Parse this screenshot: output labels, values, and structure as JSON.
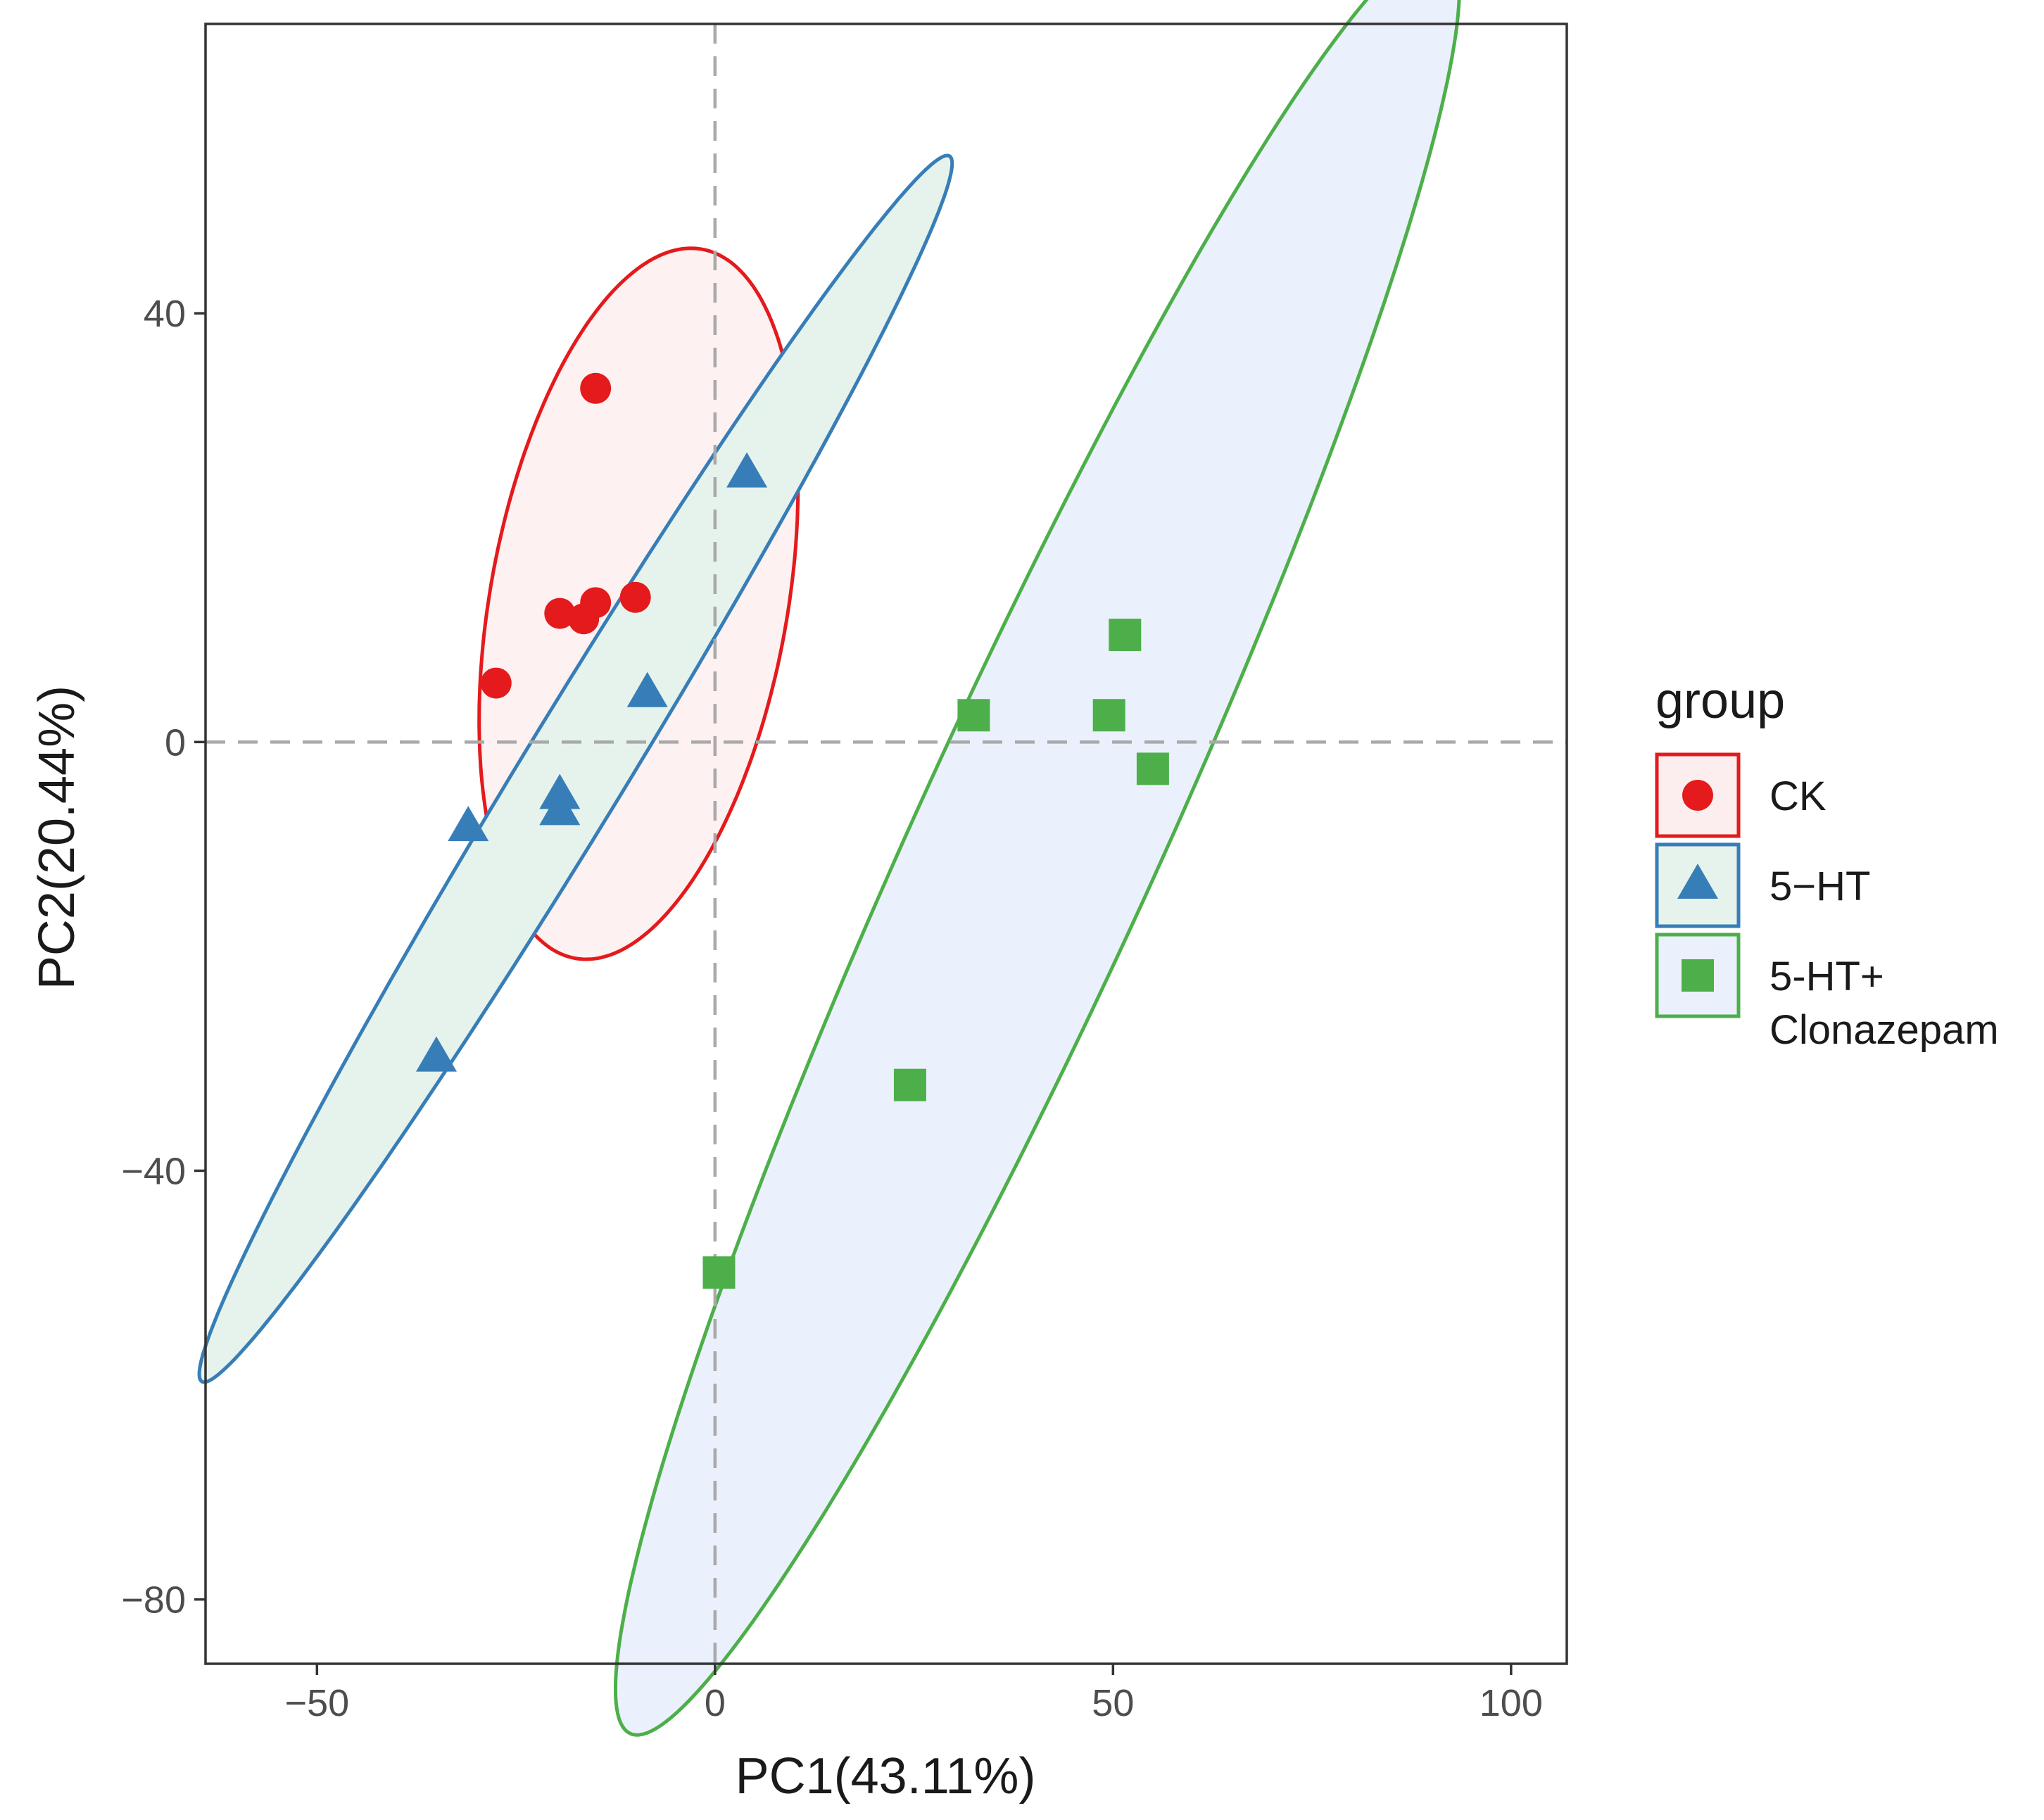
{
  "chart_data": {
    "type": "scatter",
    "title": "",
    "xlabel": "PC1(43.11%)",
    "ylabel": "PC2(20.44%)",
    "xlim": [
      -64,
      107
    ],
    "ylim": [
      -86,
      67
    ],
    "xticks": [
      -50,
      0,
      50,
      100
    ],
    "yticks": [
      40,
      0,
      -40,
      -80
    ],
    "xtick_labels": [
      "−50",
      "0",
      "50",
      "100"
    ],
    "ytick_labels": [
      "40",
      "0",
      "−40",
      "−80"
    ],
    "reference_lines": {
      "x": 0,
      "y": 0,
      "style": "dashed"
    },
    "grid": false,
    "legend": {
      "title": "group",
      "position": "right"
    },
    "series": [
      {
        "name": "CK",
        "label_lines": [
          "CK"
        ],
        "marker": "circle",
        "color": "#E41A1C",
        "fill": "#FCEEEE",
        "points": [
          {
            "x": -15,
            "y": 33
          },
          {
            "x": -27.5,
            "y": 5.5
          },
          {
            "x": -19.5,
            "y": 12
          },
          {
            "x": -16.5,
            "y": 11.5
          },
          {
            "x": -15,
            "y": 13
          },
          {
            "x": -10,
            "y": 13.5
          }
        ],
        "ellipse": {
          "cx": -9.6,
          "cy": 12.9,
          "rx": 18.4,
          "ry": 34.1,
          "angle_deg": 16
        }
      },
      {
        "name": "5−HT",
        "label_lines": [
          "5−HT"
        ],
        "marker": "triangle",
        "color": "#377EB8",
        "fill": "#E6F3EC",
        "points": [
          {
            "x": 4,
            "y": 25
          },
          {
            "x": -8.5,
            "y": 4.5
          },
          {
            "x": -19.5,
            "y": -5
          },
          {
            "x": -19.5,
            "y": -6.5
          },
          {
            "x": -31,
            "y": -8
          },
          {
            "x": -35,
            "y": -29.5
          }
        ],
        "ellipse": {
          "cx": -17.5,
          "cy": -2.5,
          "rx": 5.9,
          "ry": 74,
          "angle_deg": 39.5
        }
      },
      {
        "name": "5-HT+ Clonazepam",
        "label_lines": [
          "5-HT+",
          "Clonazepam"
        ],
        "marker": "square",
        "color": "#4DAF4A",
        "fill": "#EBF1FC",
        "points": [
          {
            "x": 51.5,
            "y": 10
          },
          {
            "x": 32.5,
            "y": 2.5
          },
          {
            "x": 49.5,
            "y": 2.5
          },
          {
            "x": 55,
            "y": -2.5
          },
          {
            "x": 24.5,
            "y": -32
          },
          {
            "x": 0.5,
            "y": -49.5
          }
        ],
        "ellipse": {
          "cx": 40.5,
          "cy": -9.1,
          "rx": 14.3,
          "ry": 97.9,
          "angle_deg": 31.8
        }
      }
    ]
  }
}
